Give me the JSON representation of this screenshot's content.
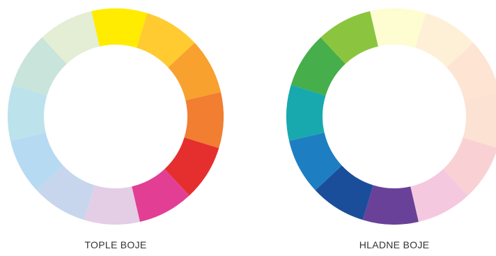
{
  "wheels": [
    {
      "id": "warm",
      "label": "TOPLE BOJE",
      "segments": [
        {
          "name": "yellow",
          "color": "#FFEC00"
        },
        {
          "name": "yellow-orange",
          "color": "#FFCB31"
        },
        {
          "name": "orange",
          "color": "#F8A12E"
        },
        {
          "name": "red-orange",
          "color": "#F17E31"
        },
        {
          "name": "red",
          "color": "#E52F2E"
        },
        {
          "name": "magenta",
          "color": "#E23F94"
        },
        {
          "name": "pale-lavender",
          "color": "#E3CEE5"
        },
        {
          "name": "pale-periwinkle",
          "color": "#C7D6ED"
        },
        {
          "name": "pale-sky-blue",
          "color": "#B7DAF3"
        },
        {
          "name": "pale-cyan",
          "color": "#BCE2EC"
        },
        {
          "name": "pale-mint",
          "color": "#C8E4DB"
        },
        {
          "name": "pale-lime",
          "color": "#E3EED5"
        }
      ]
    },
    {
      "id": "cool",
      "label": "HLADNE BOJE",
      "segments": [
        {
          "name": "pale-yellow",
          "color": "#FEFCD1"
        },
        {
          "name": "pale-cream",
          "color": "#FEF0D7"
        },
        {
          "name": "pale-peach",
          "color": "#FDE4D3"
        },
        {
          "name": "pale-apricot",
          "color": "#FCE2D2"
        },
        {
          "name": "pale-pink",
          "color": "#F9D1D4"
        },
        {
          "name": "pale-orchid",
          "color": "#F4C9E0"
        },
        {
          "name": "violet",
          "color": "#6A4199"
        },
        {
          "name": "dark-blue",
          "color": "#1B4E9A"
        },
        {
          "name": "blue",
          "color": "#1E7EC2"
        },
        {
          "name": "teal",
          "color": "#18A9AE"
        },
        {
          "name": "green",
          "color": "#46AE4A"
        },
        {
          "name": "yellow-green",
          "color": "#8BC53F"
        }
      ]
    }
  ]
}
